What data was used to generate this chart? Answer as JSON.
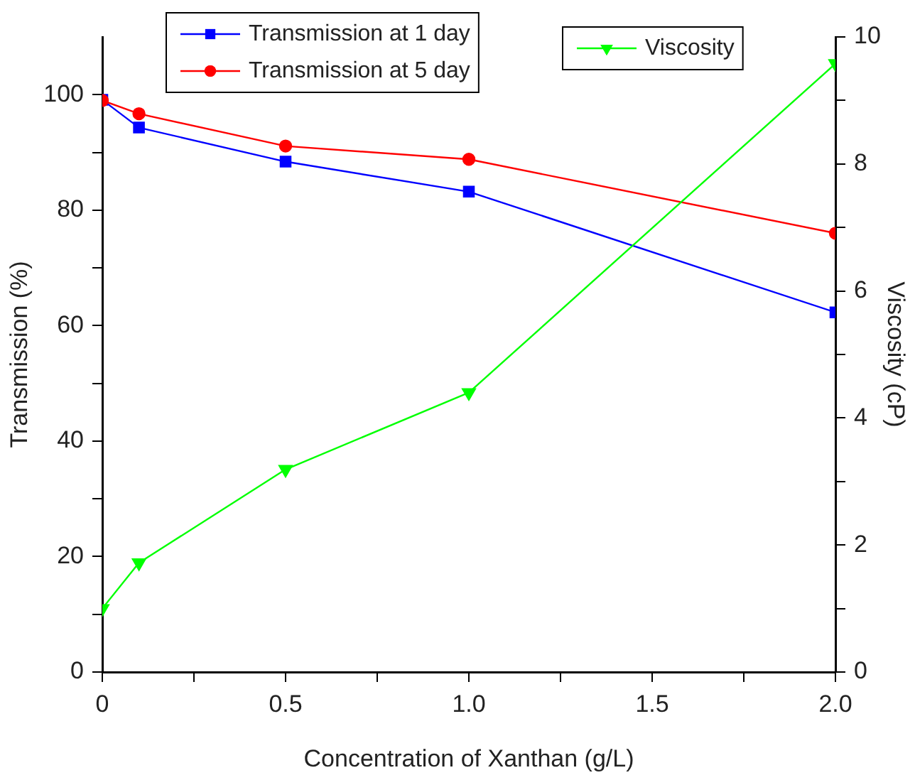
{
  "chart_data": {
    "type": "line",
    "xlabel": "Concentration of Xanthan (g/L)",
    "ylabel": "Transmission (%)",
    "y2label": "Viscosity (cP)",
    "x": [
      0,
      0.1,
      0.5,
      1,
      2
    ],
    "xlim": [
      0,
      2
    ],
    "xticks": [
      0,
      {
        "value": 0.25,
        "label": null
      },
      0.5,
      {
        "value": 0.75,
        "label": null
      },
      {
        "value": 1,
        "label": "1.0"
      },
      {
        "value": 1.25,
        "label": null
      },
      1.5,
      {
        "value": 1.75,
        "label": null
      },
      {
        "value": 2,
        "label": "2.0"
      }
    ],
    "ylim": [
      0,
      110
    ],
    "yticks": [
      0,
      {
        "value": 10,
        "label": null
      },
      20,
      {
        "value": 30,
        "label": null
      },
      40,
      {
        "value": 50,
        "label": null
      },
      60,
      {
        "value": 70,
        "label": null
      },
      80,
      {
        "value": 90,
        "label": null
      },
      100
    ],
    "y2lim": [
      0,
      10
    ],
    "y2ticks": [
      0,
      {
        "value": 1,
        "label": null
      },
      2,
      {
        "value": 3,
        "label": null
      },
      4,
      {
        "value": 5,
        "label": null
      },
      6,
      {
        "value": 7,
        "label": null
      },
      8,
      {
        "value": 9,
        "label": null
      },
      10
    ],
    "grid": false,
    "legend": "top",
    "line_style": "solid",
    "series": [
      {
        "name": "Transmission at 1 day",
        "color": "#0000ff",
        "marker": "square",
        "values": [
          99.1,
          94.3,
          88.4,
          83.2,
          62.3
        ]
      },
      {
        "name": "Transmission at 5 day",
        "color": "#ff0000",
        "marker": "circle",
        "values": [
          99,
          96.7,
          91.1,
          88.8,
          76
        ]
      },
      {
        "name": "Viscosity",
        "color": "#00ff00",
        "marker": "triangle",
        "axis": "y2",
        "values": [
          1,
          1.72,
          3.19,
          4.4,
          9.58
        ]
      }
    ]
  }
}
